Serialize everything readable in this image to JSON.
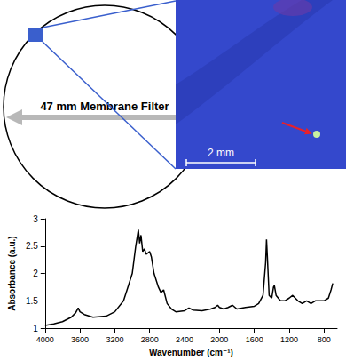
{
  "diagram": {
    "label": "47 mm Membrane Filter",
    "scale_bar": "2 mm"
  },
  "chart_data": {
    "type": "line",
    "x_label": "Wavenumber (cm⁻¹)",
    "y_label": "Absorbance (a.u.)",
    "x": [
      4000,
      3900,
      3800,
      3700,
      3650,
      3620,
      3600,
      3550,
      3450,
      3300,
      3200,
      3100,
      3050,
      3000,
      2960,
      2930,
      2915,
      2900,
      2880,
      2860,
      2840,
      2800,
      2780,
      2750,
      2700,
      2670,
      2640,
      2600,
      2550,
      2500,
      2400,
      2350,
      2300,
      2200,
      2100,
      2050,
      2020,
      2000,
      1950,
      1900,
      1850,
      1800,
      1700,
      1600,
      1550,
      1500,
      1470,
      1460,
      1450,
      1430,
      1400,
      1380,
      1370,
      1350,
      1300,
      1250,
      1200,
      1160,
      1100,
      1050,
      1000,
      950,
      900,
      850,
      800,
      750,
      720,
      700
    ],
    "values": [
      1.05,
      1.08,
      1.12,
      1.2,
      1.28,
      1.37,
      1.3,
      1.25,
      1.2,
      1.22,
      1.3,
      1.5,
      1.75,
      2.0,
      2.5,
      2.8,
      2.55,
      2.7,
      2.4,
      2.45,
      2.35,
      2.4,
      2.3,
      2.0,
      1.75,
      1.65,
      1.7,
      1.45,
      1.35,
      1.3,
      1.32,
      1.37,
      1.33,
      1.32,
      1.35,
      1.38,
      1.42,
      1.38,
      1.35,
      1.38,
      1.42,
      1.35,
      1.38,
      1.4,
      1.45,
      1.6,
      2.2,
      2.62,
      2.3,
      1.6,
      1.55,
      1.75,
      1.78,
      1.6,
      1.5,
      1.5,
      1.55,
      1.6,
      1.5,
      1.45,
      1.5,
      1.45,
      1.5,
      1.5,
      1.5,
      1.55,
      1.7,
      1.82
    ],
    "color": "#000000",
    "xlim": [
      4000,
      650
    ],
    "xticks": [
      4000,
      3600,
      3200,
      2800,
      2400,
      2000,
      1600,
      1200,
      800
    ],
    "ylim": [
      1,
      3
    ],
    "yticks": [
      1,
      1.5,
      2,
      2.5,
      3
    ],
    "grid": false
  }
}
